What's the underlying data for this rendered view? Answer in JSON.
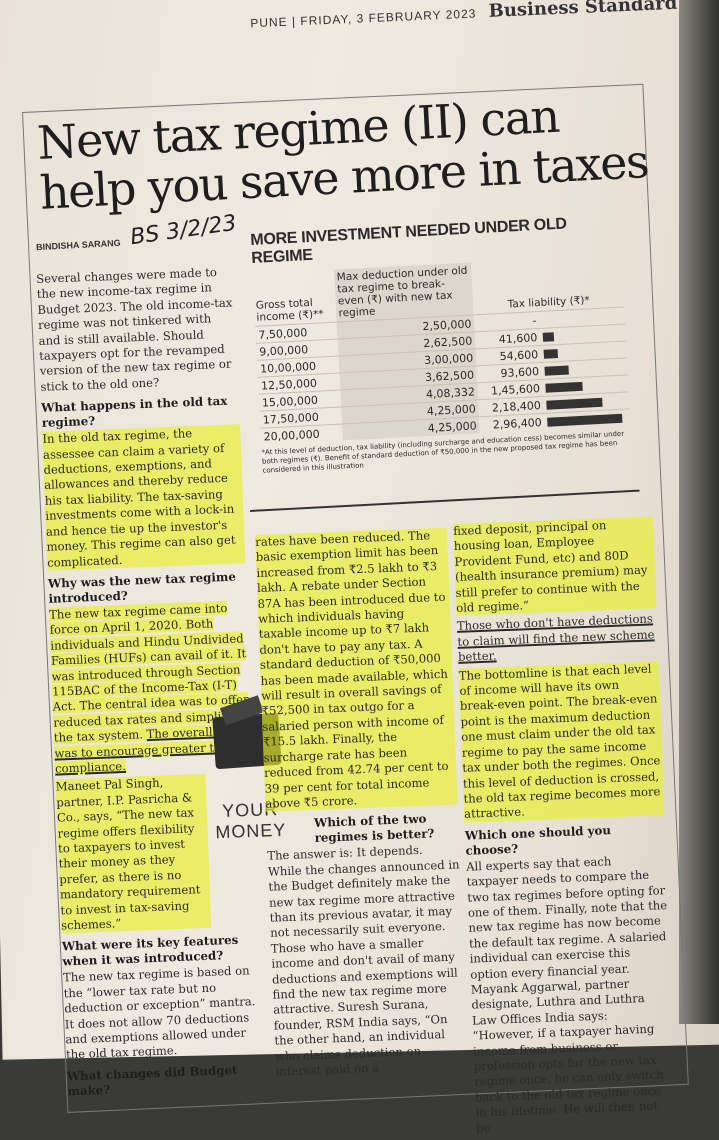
{
  "masthead": {
    "city": "PUNE",
    "date": "FRIDAY, 3 FEBRUARY 2023",
    "paper": "Business Standard"
  },
  "headline": "New tax regime (II) can help you save more in taxes",
  "byline": "BINDISHA SARANG",
  "handwritten_note": "BS 3/2/23",
  "section_label": {
    "line1": "YOUR",
    "line2": "MONEY"
  },
  "table": {
    "title": "MORE INVESTMENT NEEDED UNDER OLD REGIME",
    "headers": [
      "Gross total income (₹)**",
      "Max deduction under old tax regime to break-even (₹) with new tax regime",
      "Tax liability (₹)*"
    ],
    "rows": [
      {
        "income": "7,50,000",
        "deduction": "2,50,000",
        "tax": "-",
        "tax_value": 0
      },
      {
        "income": "9,00,000",
        "deduction": "2,62,500",
        "tax": "41,600",
        "tax_value": 41600
      },
      {
        "income": "10,00,000",
        "deduction": "3,00,000",
        "tax": "54,600",
        "tax_value": 54600
      },
      {
        "income": "12,50,000",
        "deduction": "3,62,500",
        "tax": "93,600",
        "tax_value": 93600
      },
      {
        "income": "15,00,000",
        "deduction": "4,08,332",
        "tax": "1,45,600",
        "tax_value": 145600
      },
      {
        "income": "17,50,000",
        "deduction": "4,25,000",
        "tax": "2,18,400",
        "tax_value": 218400
      },
      {
        "income": "20,00,000",
        "deduction": "4,25,000",
        "tax": "2,96,400",
        "tax_value": 296400
      }
    ],
    "note": "*At this level of deduction, tax liability (including surcharge and education cess) becomes similar under both regimes (₹). Benefit of standard deduction of ₹50,000 in the new proposed tax regime has been considered in this illustration"
  },
  "col1": {
    "intro": "Several changes were made to the new income-tax regime in Budget 2023. The old income-tax regime was not tinkered with and is still available. Should taxpayers opt for the revamped version of the new tax regime or stick to the old one?",
    "h1": "What happens in the old tax regime?",
    "p1": "In the old tax regime, the assessee can claim a variety of deductions, exemptions, and allowances and thereby reduce his tax liability. The tax-saving investments come with a lock-in and hence tie up the investor's money. This regime can also get complicated.",
    "h2": "Why was the new tax regime introduced?",
    "p2a": "The new tax regime came into force on April 1, 2020. Both individuals and Hindu Undivided Families (HUFs) can avail of it. It was introduced through Section 115BAC of the Income-Tax (I-T) Act. The central idea was to offer reduced tax rates and simplify the tax system. ",
    "p2b": "The overall goal was to encourage greater tax compliance.",
    "p3": "Maneet Pal Singh, partner, I.P. Pasricha & Co., says, “The new tax regime offers flexibility to taxpayers to invest their money as they prefer, as there is no mandatory requirement to invest in tax-saving schemes.”",
    "h3": "What were its key features when it was introduced?",
    "p4": "The new tax regime is based on the “lower tax rate but no deduction or exception” mantra. It does not allow 70 deductions and exemptions allowed under the old tax regime.",
    "h4": "What changes did Budget make?"
  },
  "col2": {
    "p1": "rates have been reduced. The basic exemption limit has been increased from ₹2.5 lakh to ₹3 lakh. A rebate under Section 87A has been introduced due to which individuals having taxable income up to ₹7 lakh don't have to pay any tax. A standard deduction of ₹50,000 has been made available, which will result in overall savings of ₹52,500 in tax outgo for a salaried person with income of ₹15.5 lakh. Finally, the surcharge rate has been reduced from 42.74 per cent to 39 per cent for total income above ₹5 crore.",
    "h1": "Which of the two regimes is better?",
    "p2": "The answer is: It depends. While the changes announced in the Budget definitely make the new tax regime more attractive than its previous avatar, it may not necessarily suit everyone. Those who have a smaller income and don't avail of many deductions and exemptions will find the new tax regime more attractive. Suresh Surana, founder, RSM India says, “On the other hand, an individual who claims deduction on interest paid on a"
  },
  "col3": {
    "p1": "fixed deposit, principal on housing loan, Employee Provident Fund, etc) and 80D (health insurance premium) may still prefer to continue with the old regime.”",
    "p2": "Those who don't have deductions to claim will find the new scheme better.",
    "p3": "The bottomline is that each level of income will have its own break-even point. The break-even point is the maximum deduction one must claim under the old tax regime to pay the same income tax under both the regimes. Once this level of deduction is crossed, the old tax regime becomes more attractive.",
    "h1": "Which one should you choose?",
    "p4": "All experts say that each taxpayer needs to compare the two tax regimes before opting for one of them. Finally, note that the new tax regime has now become the default tax regime. A salaried individual can exercise this option every financial year. Mayank Aggarwal, partner designate, Luthra and Luthra Law Offices India says: “However, if a taxpayer having income from business or profession opts for the new tax regime once, he can only switch back to the old tax regime once in his lifetime. He will then not be"
  }
}
